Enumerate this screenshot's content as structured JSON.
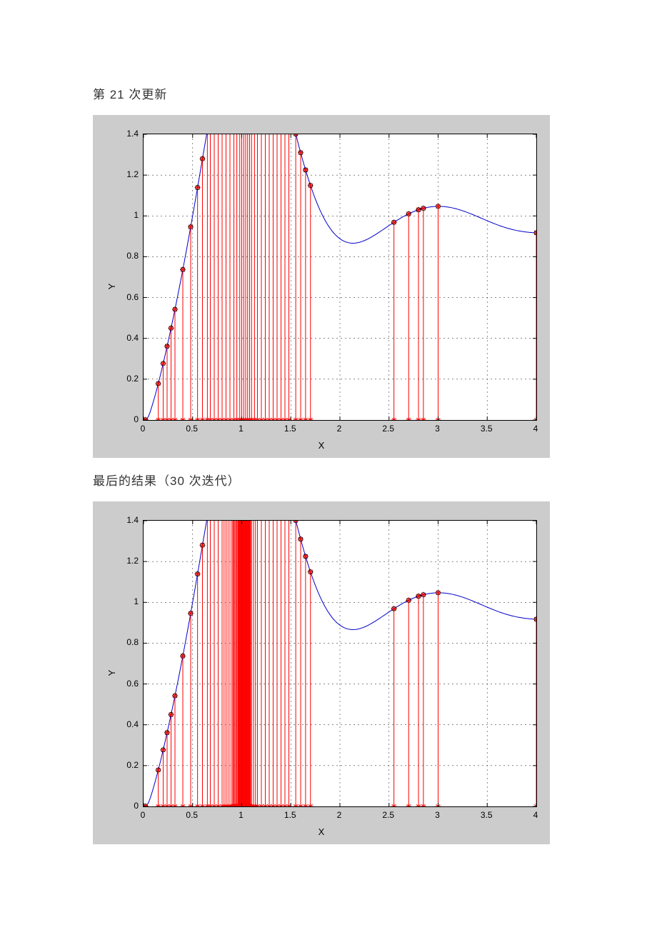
{
  "caption1": "第 21 次更新",
  "caption2": "最后的结果（30 次迭代）",
  "chartCommon": {
    "figure_bg": "#cccccc",
    "plot_bg": "#ffffff",
    "grid_color": "#404040",
    "grid_dash": "2,4",
    "curve_color": "#0000cc",
    "curve_width": 1,
    "stem_color": "#ff0000",
    "stem_width": 1,
    "marker_color": "#ff0000",
    "marker_type": "asterisk",
    "marker_size": 4,
    "circle_marker_color": "#000000",
    "circle_marker_size": 3,
    "axis_color": "#000000",
    "tick_fontsize": 12,
    "label_fontsize": 13,
    "xlabel": "X",
    "ylabel": "Y",
    "xlim": [
      0,
      4
    ],
    "ylim": [
      0,
      1.4
    ],
    "xtick_step": 0.5,
    "ytick_step": 0.2,
    "xticks": [
      0,
      0.5,
      1,
      1.5,
      2,
      2.5,
      3,
      3.5,
      4
    ],
    "yticks": [
      0,
      0.2,
      0.4,
      0.6,
      0.8,
      1,
      1.2,
      1.4
    ]
  },
  "chart1": {
    "stems_x": [
      0.02,
      0.15,
      0.2,
      0.24,
      0.28,
      0.32,
      0.4,
      0.48,
      0.55,
      0.6,
      0.65,
      0.68,
      0.72,
      0.76,
      0.8,
      0.84,
      0.88,
      0.92,
      0.95,
      0.98,
      1.0,
      1.02,
      1.04,
      1.06,
      1.08,
      1.1,
      1.13,
      1.16,
      1.2,
      1.24,
      1.28,
      1.32,
      1.36,
      1.4,
      1.44,
      1.48,
      1.55,
      1.6,
      1.65,
      1.7,
      2.55,
      2.7,
      2.8,
      2.85,
      3.0,
      4.0
    ]
  },
  "chart2": {
    "stems_x": [
      0.02,
      0.15,
      0.2,
      0.24,
      0.28,
      0.32,
      0.4,
      0.48,
      0.55,
      0.6,
      0.65,
      0.68,
      0.72,
      0.76,
      0.8,
      0.82,
      0.84,
      0.86,
      0.88,
      0.9,
      0.91,
      0.92,
      0.93,
      0.94,
      0.95,
      0.96,
      0.965,
      0.97,
      0.975,
      0.98,
      0.985,
      0.99,
      0.995,
      1.0,
      1.005,
      1.01,
      1.015,
      1.02,
      1.025,
      1.03,
      1.035,
      1.04,
      1.045,
      1.05,
      1.055,
      1.06,
      1.065,
      1.07,
      1.075,
      1.08,
      1.085,
      1.09,
      1.1,
      1.12,
      1.14,
      1.16,
      1.2,
      1.24,
      1.28,
      1.32,
      1.36,
      1.4,
      1.44,
      1.48,
      1.55,
      1.6,
      1.65,
      1.7,
      2.55,
      2.7,
      2.8,
      2.85,
      3.0,
      4.0
    ]
  }
}
